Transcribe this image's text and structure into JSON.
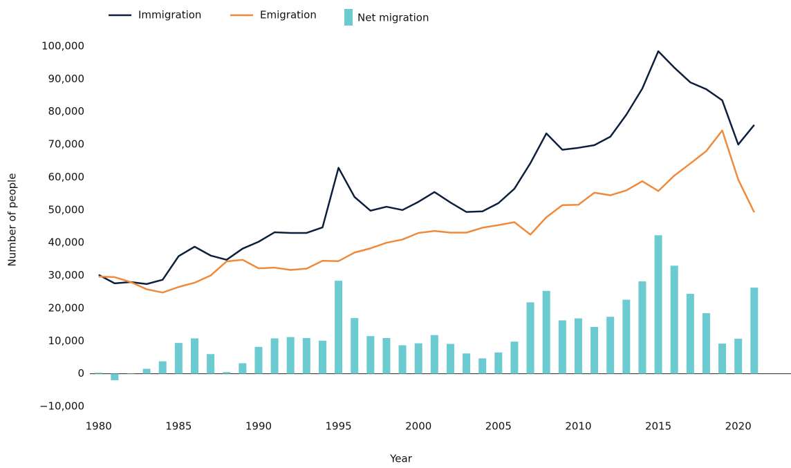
{
  "chart_data": {
    "type": "line",
    "x_label": "Year",
    "y_label": "Number of people",
    "x": [
      1980,
      1981,
      1982,
      1983,
      1984,
      1985,
      1986,
      1987,
      1988,
      1989,
      1990,
      1991,
      1992,
      1993,
      1994,
      1995,
      1996,
      1997,
      1998,
      1999,
      2000,
      2001,
      2002,
      2003,
      2004,
      2005,
      2006,
      2007,
      2008,
      2009,
      2010,
      2011,
      2012,
      2013,
      2014,
      2015,
      2016,
      2017,
      2018,
      2019,
      2020,
      2021
    ],
    "series": [
      {
        "name": "Immigration",
        "type": "line",
        "color": "#0d1f3c",
        "values": [
          30200,
          27600,
          28000,
          27400,
          28700,
          35900,
          38800,
          36100,
          34800,
          38200,
          40300,
          43200,
          43000,
          43000,
          44700,
          62900,
          54000,
          49800,
          51000,
          50000,
          52500,
          55500,
          52300,
          49400,
          49600,
          52100,
          56500,
          64300,
          73400,
          68400,
          69000,
          69800,
          72400,
          79100,
          87100,
          98500,
          93500,
          89000,
          86900,
          83500,
          70000,
          76000
        ]
      },
      {
        "name": "Emigration",
        "type": "line",
        "color": "#f08a3a",
        "values": [
          29700,
          29500,
          28000,
          25800,
          24800,
          26500,
          27800,
          30000,
          34300,
          34800,
          32200,
          32400,
          31700,
          32100,
          34500,
          34400,
          37000,
          38300,
          40000,
          41000,
          43000,
          43600,
          43100,
          43100,
          44600,
          45400,
          46300,
          42500,
          47800,
          51500,
          51600,
          55300,
          54500,
          56000,
          58800,
          55800,
          60500,
          64200,
          68000,
          74300,
          59300,
          49300
        ]
      },
      {
        "name": "Net migration",
        "type": "bar",
        "color": "#6ccbd0",
        "values": [
          300,
          -2000,
          0,
          1500,
          3800,
          9400,
          10800,
          6000,
          500,
          3200,
          8200,
          10800,
          11200,
          10900,
          10100,
          28400,
          17000,
          11500,
          10900,
          8700,
          9300,
          11800,
          9100,
          6200,
          4700,
          6500,
          9800,
          21800,
          25300,
          16300,
          16900,
          14300,
          17400,
          22600,
          28200,
          42300,
          33000,
          24400,
          18500,
          9200,
          10700,
          26300
        ]
      }
    ],
    "xlim": [
      1979.45,
      2023.3
    ],
    "xticks": [
      1980,
      1985,
      1990,
      1995,
      2000,
      2005,
      2010,
      2015,
      2020
    ],
    "ylim": [
      -10000,
      100000
    ],
    "yticks": [
      {
        "value": -10000,
        "label": "−10,000"
      },
      0,
      {
        "value": 10000,
        "label": "10,000"
      },
      {
        "value": 20000,
        "label": "20,000"
      },
      {
        "value": 30000,
        "label": "30,000"
      },
      {
        "value": 40000,
        "label": "40,000"
      },
      {
        "value": 50000,
        "label": "50,000"
      },
      {
        "value": 60000,
        "label": "60,000"
      },
      {
        "value": 70000,
        "label": "70,000"
      },
      {
        "value": 80000,
        "label": "80,000"
      },
      {
        "value": 90000,
        "label": "90,000"
      },
      {
        "value": 100000,
        "label": "100,000"
      }
    ],
    "grid": false,
    "legend": "top-left"
  }
}
